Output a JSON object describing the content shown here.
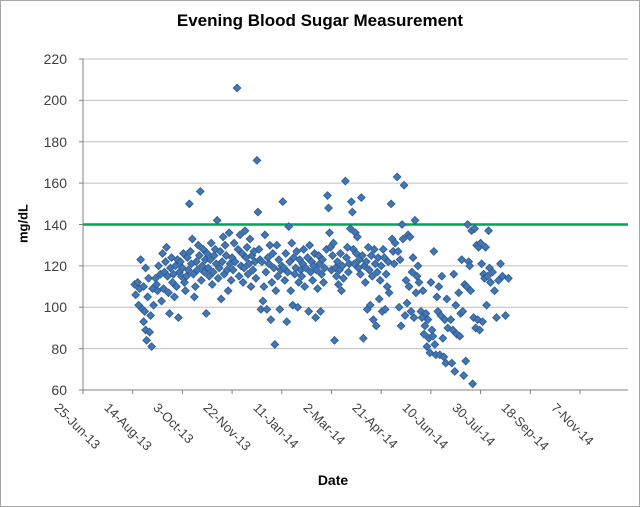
{
  "chart": {
    "title": "Evening Blood Sugar Measurement",
    "x_axis_title": "Date",
    "y_axis_title": "mg/dL"
  },
  "colors": {
    "marker_fill": "#4377B4",
    "marker_border": "#2E5D94",
    "target_line": "#00A651",
    "gridline": "#BFBFBF",
    "axis": "#808080",
    "tick_text": "#3F3F3F",
    "title_text": "#000000"
  },
  "chart_data": {
    "type": "scatter",
    "title": "Evening Blood Sugar Measurement",
    "xlabel": "Date",
    "ylabel": "mg/dL",
    "ylim": [
      60,
      220
    ],
    "y_tick_step": 20,
    "y_tick_labels": [
      "220",
      "200",
      "180",
      "160",
      "140",
      "120",
      "100",
      "80",
      "60"
    ],
    "x_tick_labels": [
      "25-Jun-13",
      "14-Aug-13",
      "3-Oct-13",
      "22-Nov-13",
      "11-Jan-14",
      "2-Mar-14",
      "21-Apr-14",
      "10-Jun-14",
      "30-Jul-14",
      "18-Sep-14",
      "7-Nov-14"
    ],
    "x_tick_spacing_days": 50,
    "x_unit": "days since 25-Jun-13 (first tick)",
    "grid": "horizontal",
    "legend": "none",
    "reference_line": {
      "value": 140,
      "color": "#00A651"
    },
    "points": [
      [
        52,
        111
      ],
      [
        53,
        106
      ],
      [
        55,
        112
      ],
      [
        56,
        101
      ],
      [
        57,
        109
      ],
      [
        58,
        123
      ],
      [
        60,
        99
      ],
      [
        61,
        110
      ],
      [
        61,
        93
      ],
      [
        62,
        98
      ],
      [
        63,
        89
      ],
      [
        63,
        119
      ],
      [
        64,
        84
      ],
      [
        65,
        105
      ],
      [
        66,
        114
      ],
      [
        67,
        88
      ],
      [
        68,
        96
      ],
      [
        69,
        81
      ],
      [
        70,
        109
      ],
      [
        71,
        101
      ],
      [
        73,
        114
      ],
      [
        74,
        111
      ],
      [
        75,
        108
      ],
      [
        76,
        120
      ],
      [
        78,
        116
      ],
      [
        79,
        103
      ],
      [
        80,
        126
      ],
      [
        81,
        109
      ],
      [
        82,
        117
      ],
      [
        83,
        122
      ],
      [
        84,
        129
      ],
      [
        85,
        115
      ],
      [
        86,
        107
      ],
      [
        87,
        97
      ],
      [
        88,
        119
      ],
      [
        89,
        124
      ],
      [
        90,
        112
      ],
      [
        91,
        116
      ],
      [
        92,
        105
      ],
      [
        93,
        120
      ],
      [
        94,
        110
      ],
      [
        95,
        123
      ],
      [
        96,
        95
      ],
      [
        97,
        117
      ],
      [
        98,
        122
      ],
      [
        99,
        115
      ],
      [
        100,
        119
      ],
      [
        101,
        126
      ],
      [
        102,
        112
      ],
      [
        103,
        108
      ],
      [
        104,
        115
      ],
      [
        105,
        124
      ],
      [
        106,
        118
      ],
      [
        107,
        150
      ],
      [
        108,
        127
      ],
      [
        109,
        121
      ],
      [
        110,
        133
      ],
      [
        111,
        116
      ],
      [
        112,
        105
      ],
      [
        113,
        110
      ],
      [
        114,
        122
      ],
      [
        115,
        118
      ],
      [
        116,
        130
      ],
      [
        117,
        125
      ],
      [
        118,
        156
      ],
      [
        119,
        113
      ],
      [
        120,
        120
      ],
      [
        121,
        128
      ],
      [
        122,
        117
      ],
      [
        123,
        123
      ],
      [
        124,
        97
      ],
      [
        125,
        126
      ],
      [
        126,
        119
      ],
      [
        127,
        115
      ],
      [
        128,
        123
      ],
      [
        129,
        131
      ],
      [
        130,
        111
      ],
      [
        131,
        117
      ],
      [
        132,
        125
      ],
      [
        133,
        128
      ],
      [
        134,
        121
      ],
      [
        135,
        142
      ],
      [
        136,
        114
      ],
      [
        137,
        119
      ],
      [
        138,
        127
      ],
      [
        139,
        104
      ],
      [
        140,
        122
      ],
      [
        141,
        134
      ],
      [
        142,
        116
      ],
      [
        143,
        130
      ],
      [
        144,
        125
      ],
      [
        145,
        118
      ],
      [
        146,
        108
      ],
      [
        147,
        136
      ],
      [
        148,
        121
      ],
      [
        149,
        113
      ],
      [
        150,
        124
      ],
      [
        151,
        118
      ],
      [
        152,
        131
      ],
      [
        153,
        122
      ],
      [
        155,
        206
      ],
      [
        156,
        128
      ],
      [
        157,
        115
      ],
      [
        158,
        135
      ],
      [
        159,
        120
      ],
      [
        160,
        126
      ],
      [
        161,
        112
      ],
      [
        162,
        119
      ],
      [
        163,
        137
      ],
      [
        164,
        124
      ],
      [
        165,
        129
      ],
      [
        166,
        116
      ],
      [
        167,
        121
      ],
      [
        168,
        133
      ],
      [
        169,
        110
      ],
      [
        170,
        125
      ],
      [
        171,
        118
      ],
      [
        172,
        127
      ],
      [
        173,
        122
      ],
      [
        174,
        114
      ],
      [
        175,
        171
      ],
      [
        176,
        146
      ],
      [
        177,
        128
      ],
      [
        178,
        123
      ],
      [
        179,
        99
      ],
      [
        180,
        122
      ],
      [
        181,
        103
      ],
      [
        182,
        110
      ],
      [
        183,
        135
      ],
      [
        184,
        117
      ],
      [
        185,
        99
      ],
      [
        186,
        124
      ],
      [
        187,
        121
      ],
      [
        188,
        130
      ],
      [
        189,
        94
      ],
      [
        190,
        112
      ],
      [
        191,
        126
      ],
      [
        192,
        119
      ],
      [
        193,
        82
      ],
      [
        194,
        108
      ],
      [
        195,
        130
      ],
      [
        196,
        115
      ],
      [
        197,
        123
      ],
      [
        198,
        99
      ],
      [
        199,
        118
      ],
      [
        200,
        120
      ],
      [
        201,
        151
      ],
      [
        202,
        119
      ],
      [
        203,
        113
      ],
      [
        204,
        126
      ],
      [
        205,
        93
      ],
      [
        206,
        117
      ],
      [
        207,
        139
      ],
      [
        208,
        122
      ],
      [
        209,
        108
      ],
      [
        210,
        131
      ],
      [
        211,
        101
      ],
      [
        212,
        124
      ],
      [
        213,
        116
      ],
      [
        214,
        119
      ],
      [
        215,
        127
      ],
      [
        216,
        100
      ],
      [
        217,
        112
      ],
      [
        218,
        123
      ],
      [
        219,
        118
      ],
      [
        220,
        115
      ],
      [
        221,
        121
      ],
      [
        222,
        128
      ],
      [
        223,
        110
      ],
      [
        224,
        119
      ],
      [
        226,
        124
      ],
      [
        227,
        98
      ],
      [
        228,
        130
      ],
      [
        229,
        117
      ],
      [
        230,
        122
      ],
      [
        231,
        113
      ],
      [
        232,
        120
      ],
      [
        233,
        126
      ],
      [
        234,
        95
      ],
      [
        235,
        118
      ],
      [
        236,
        109
      ],
      [
        237,
        125
      ],
      [
        238,
        121
      ],
      [
        239,
        98
      ],
      [
        240,
        116
      ],
      [
        241,
        123
      ],
      [
        242,
        112
      ],
      [
        243,
        119
      ],
      [
        245,
        128
      ],
      [
        246,
        154
      ],
      [
        247,
        148
      ],
      [
        248,
        136
      ],
      [
        249,
        129
      ],
      [
        250,
        118
      ],
      [
        251,
        125
      ],
      [
        252,
        131
      ],
      [
        253,
        84
      ],
      [
        254,
        119
      ],
      [
        255,
        115
      ],
      [
        256,
        122
      ],
      [
        257,
        111
      ],
      [
        258,
        118
      ],
      [
        259,
        126
      ],
      [
        260,
        108
      ],
      [
        261,
        120
      ],
      [
        262,
        114
      ],
      [
        264,
        161
      ],
      [
        265,
        124
      ],
      [
        266,
        129
      ],
      [
        267,
        117
      ],
      [
        268,
        121
      ],
      [
        269,
        138
      ],
      [
        270,
        151
      ],
      [
        271,
        146
      ],
      [
        272,
        128
      ],
      [
        273,
        121
      ],
      [
        274,
        136
      ],
      [
        275,
        126
      ],
      [
        276,
        134
      ],
      [
        277,
        119
      ],
      [
        278,
        123
      ],
      [
        279,
        116
      ],
      [
        280,
        153
      ],
      [
        281,
        125
      ],
      [
        282,
        85
      ],
      [
        283,
        120
      ],
      [
        284,
        112
      ],
      [
        285,
        122
      ],
      [
        286,
        99
      ],
      [
        287,
        129
      ],
      [
        288,
        118
      ],
      [
        289,
        101
      ],
      [
        290,
        125
      ],
      [
        291,
        115
      ],
      [
        292,
        94
      ],
      [
        293,
        128
      ],
      [
        294,
        121
      ],
      [
        295,
        91
      ],
      [
        296,
        117
      ],
      [
        297,
        124
      ],
      [
        298,
        104
      ],
      [
        299,
        113
      ],
      [
        300,
        120
      ],
      [
        301,
        98
      ],
      [
        302,
        128
      ],
      [
        303,
        124
      ],
      [
        304,
        99
      ],
      [
        305,
        116
      ],
      [
        306,
        110
      ],
      [
        307,
        122
      ],
      [
        308,
        107
      ],
      [
        310,
        150
      ],
      [
        311,
        133
      ],
      [
        312,
        127
      ],
      [
        313,
        121
      ],
      [
        314,
        131
      ],
      [
        316,
        163
      ],
      [
        317,
        127
      ],
      [
        318,
        100
      ],
      [
        319,
        123
      ],
      [
        320,
        91
      ],
      [
        321,
        140
      ],
      [
        322,
        133
      ],
      [
        323,
        159
      ],
      [
        324,
        96
      ],
      [
        325,
        113
      ],
      [
        326,
        102
      ],
      [
        327,
        135
      ],
      [
        328,
        110
      ],
      [
        329,
        134
      ],
      [
        330,
        98
      ],
      [
        331,
        117
      ],
      [
        332,
        124
      ],
      [
        333,
        95
      ],
      [
        334,
        142
      ],
      [
        335,
        107
      ],
      [
        336,
        115
      ],
      [
        337,
        120
      ],
      [
        338,
        112
      ],
      [
        340,
        98
      ],
      [
        341,
        95
      ],
      [
        342,
        108
      ],
      [
        343,
        87
      ],
      [
        344,
        91
      ],
      [
        345,
        97
      ],
      [
        346,
        81
      ],
      [
        347,
        94
      ],
      [
        348,
        85
      ],
      [
        349,
        78
      ],
      [
        350,
        112
      ],
      [
        351,
        89
      ],
      [
        352,
        86
      ],
      [
        353,
        127
      ],
      [
        354,
        82
      ],
      [
        355,
        77
      ],
      [
        356,
        105
      ],
      [
        357,
        98
      ],
      [
        358,
        110
      ],
      [
        359,
        77
      ],
      [
        360,
        96
      ],
      [
        361,
        115
      ],
      [
        362,
        85
      ],
      [
        363,
        76
      ],
      [
        364,
        94
      ],
      [
        365,
        73
      ],
      [
        366,
        104
      ],
      [
        367,
        90
      ],
      [
        370,
        94
      ],
      [
        371,
        73
      ],
      [
        372,
        89
      ],
      [
        373,
        116
      ],
      [
        374,
        69
      ],
      [
        375,
        101
      ],
      [
        376,
        87
      ],
      [
        378,
        107
      ],
      [
        379,
        86
      ],
      [
        380,
        97
      ],
      [
        381,
        123
      ],
      [
        382,
        98
      ],
      [
        383,
        67
      ],
      [
        384,
        111
      ],
      [
        385,
        74
      ],
      [
        386,
        110
      ],
      [
        387,
        140
      ],
      [
        388,
        122
      ],
      [
        389,
        120
      ],
      [
        390,
        108
      ],
      [
        391,
        137
      ],
      [
        392,
        63
      ],
      [
        393,
        95
      ],
      [
        394,
        138
      ],
      [
        395,
        90
      ],
      [
        396,
        130
      ],
      [
        397,
        94
      ],
      [
        398,
        129
      ],
      [
        399,
        89
      ],
      [
        400,
        131
      ],
      [
        401,
        121
      ],
      [
        402,
        93
      ],
      [
        403,
        116
      ],
      [
        404,
        114
      ],
      [
        405,
        129
      ],
      [
        406,
        101
      ],
      [
        407,
        115
      ],
      [
        408,
        137
      ],
      [
        409,
        119
      ],
      [
        410,
        112
      ],
      [
        412,
        117
      ],
      [
        414,
        108
      ],
      [
        416,
        95
      ],
      [
        418,
        113
      ],
      [
        420,
        121
      ],
      [
        422,
        115
      ],
      [
        425,
        96
      ],
      [
        428,
        114
      ]
    ]
  }
}
